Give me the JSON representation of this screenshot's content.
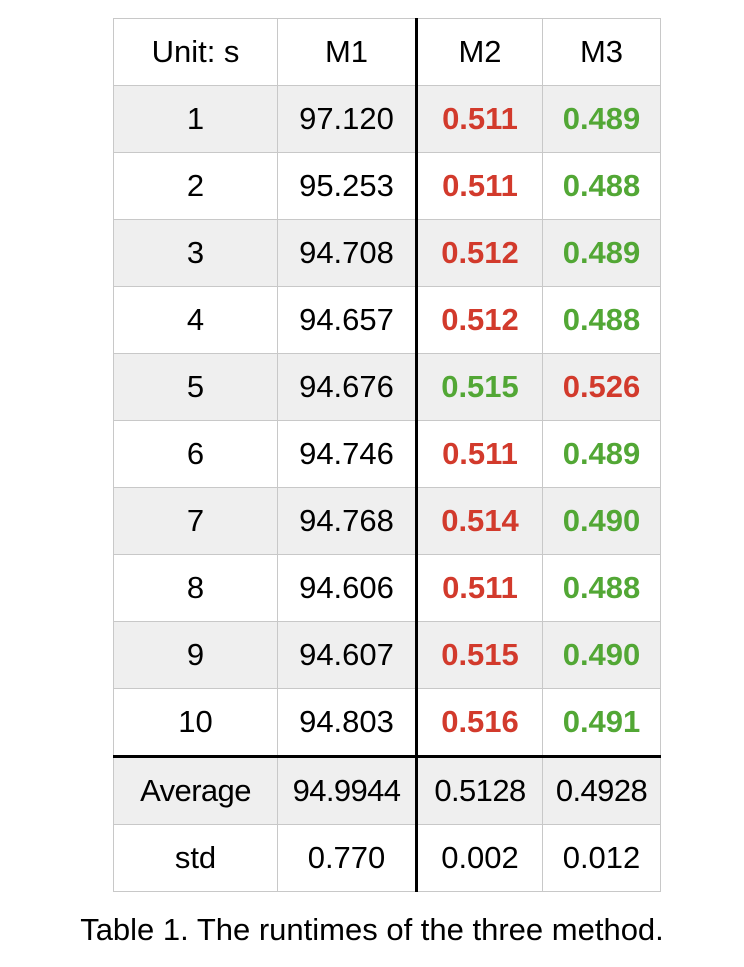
{
  "table": {
    "headers": [
      "Unit: s",
      "M1",
      "M2",
      "M3"
    ],
    "colors": {
      "red": "#d23a2c",
      "green": "#52a735"
    },
    "rows": [
      {
        "label": "1",
        "m1": "97.120",
        "m2": "0.511",
        "m3": "0.489",
        "m2_color": "red",
        "m3_color": "green"
      },
      {
        "label": "2",
        "m1": "95.253",
        "m2": "0.511",
        "m3": "0.488",
        "m2_color": "red",
        "m3_color": "green"
      },
      {
        "label": "3",
        "m1": "94.708",
        "m2": "0.512",
        "m3": "0.489",
        "m2_color": "red",
        "m3_color": "green"
      },
      {
        "label": "4",
        "m1": "94.657",
        "m2": "0.512",
        "m3": "0.488",
        "m2_color": "red",
        "m3_color": "green"
      },
      {
        "label": "5",
        "m1": "94.676",
        "m2": "0.515",
        "m3": "0.526",
        "m2_color": "green",
        "m3_color": "red"
      },
      {
        "label": "6",
        "m1": "94.746",
        "m2": "0.511",
        "m3": "0.489",
        "m2_color": "red",
        "m3_color": "green"
      },
      {
        "label": "7",
        "m1": "94.768",
        "m2": "0.514",
        "m3": "0.490",
        "m2_color": "red",
        "m3_color": "green"
      },
      {
        "label": "8",
        "m1": "94.606",
        "m2": "0.511",
        "m3": "0.488",
        "m2_color": "red",
        "m3_color": "green"
      },
      {
        "label": "9",
        "m1": "94.607",
        "m2": "0.515",
        "m3": "0.490",
        "m2_color": "red",
        "m3_color": "green"
      },
      {
        "label": "10",
        "m1": "94.803",
        "m2": "0.516",
        "m3": "0.491",
        "m2_color": "red",
        "m3_color": "green"
      }
    ],
    "summary": [
      {
        "label": "Average",
        "m1": "94.9944",
        "m2": "0.5128",
        "m3": "0.4928"
      },
      {
        "label": "std",
        "m1": "0.770",
        "m2": "0.002",
        "m3": "0.012"
      }
    ]
  },
  "caption": "Table 1. The runtimes of the three method."
}
